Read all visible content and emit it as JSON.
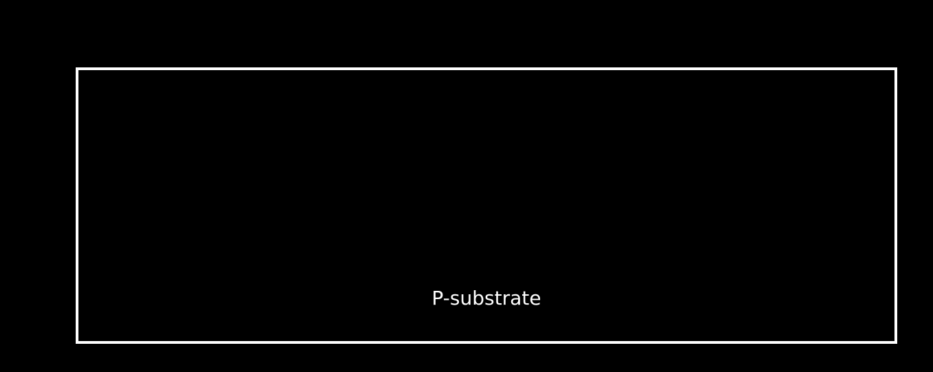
{
  "diagram": {
    "substrate": {
      "label": "P-substrate"
    },
    "colors": {
      "background": "#000000",
      "outline": "#ffffff",
      "text": "#ffffff"
    }
  }
}
